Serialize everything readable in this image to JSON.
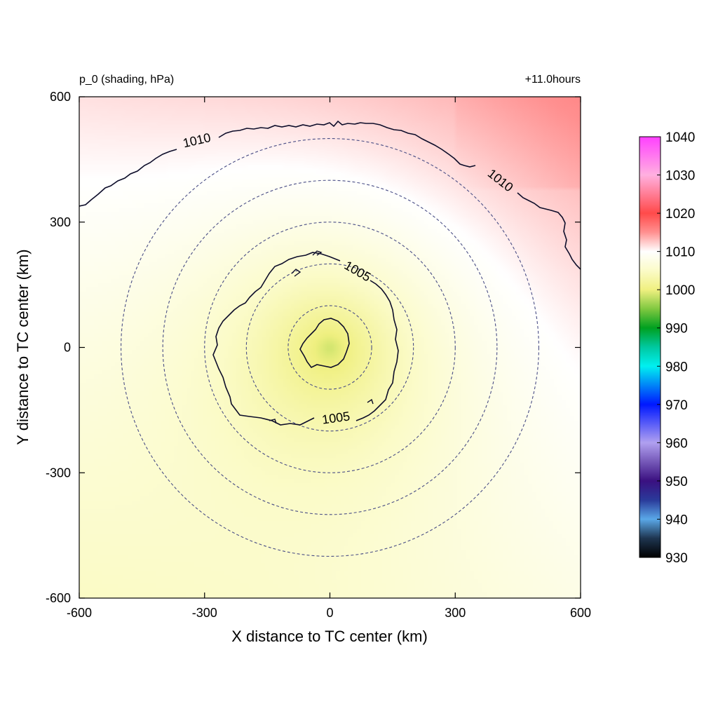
{
  "chart_data": {
    "type": "heatmap",
    "title_left": "p_0 (shading, hPa)",
    "title_right": "+11.0hours",
    "xlabel": "X distance to TC center (km)",
    "ylabel": "Y distance to TC center (km)",
    "xlim": [
      -600,
      600
    ],
    "ylim": [
      -600,
      600
    ],
    "x_ticks": [
      -600,
      -300,
      0,
      300,
      600
    ],
    "y_ticks": [
      -600,
      -300,
      0,
      300,
      600
    ],
    "x_tick_labels": [
      "-600",
      "-300",
      "0",
      "300",
      "600"
    ],
    "y_tick_labels": [
      "-600",
      "-300",
      "0",
      "300",
      "600"
    ],
    "colorbar": {
      "min": 930,
      "max": 1040,
      "ticks": [
        930,
        940,
        950,
        960,
        970,
        980,
        990,
        1000,
        1010,
        1020,
        1030,
        1040
      ],
      "tick_labels": [
        "930",
        "940",
        "950",
        "960",
        "970",
        "980",
        "990",
        "1000",
        "1010",
        "1020",
        "1030",
        "1040"
      ],
      "stops": [
        {
          "value": 930,
          "color": "#000000"
        },
        {
          "value": 935,
          "color": "#1e3550"
        },
        {
          "value": 940,
          "color": "#5aa8e8"
        },
        {
          "value": 945,
          "color": "#2a3a9a"
        },
        {
          "value": 950,
          "color": "#3a1080"
        },
        {
          "value": 960,
          "color": "#b0a0f0"
        },
        {
          "value": 970,
          "color": "#0018ff"
        },
        {
          "value": 980,
          "color": "#00f0f0"
        },
        {
          "value": 985,
          "color": "#00c8a0"
        },
        {
          "value": 990,
          "color": "#00a020"
        },
        {
          "value": 995,
          "color": "#80c840"
        },
        {
          "value": 1000,
          "color": "#f0f080"
        },
        {
          "value": 1005,
          "color": "#fbfbc8"
        },
        {
          "value": 1010,
          "color": "#ffffff"
        },
        {
          "value": 1015,
          "color": "#ff9090"
        },
        {
          "value": 1020,
          "color": "#ff4a4a"
        },
        {
          "value": 1030,
          "color": "#ffb0e0"
        },
        {
          "value": 1040,
          "color": "#ff40ff"
        }
      ]
    },
    "field": {
      "center_value": 998.5,
      "center": [
        0,
        0
      ],
      "contours": [
        {
          "level": 1000,
          "labels": []
        },
        {
          "level": 1005,
          "labels": [
            "1005",
            "1005"
          ]
        },
        {
          "level": 1010,
          "labels": [
            "1010",
            "1010"
          ]
        }
      ]
    },
    "reference_circles_radius_km": [
      100,
      200,
      300,
      400,
      500
    ],
    "grid": false,
    "legend": "colorbar-right"
  }
}
